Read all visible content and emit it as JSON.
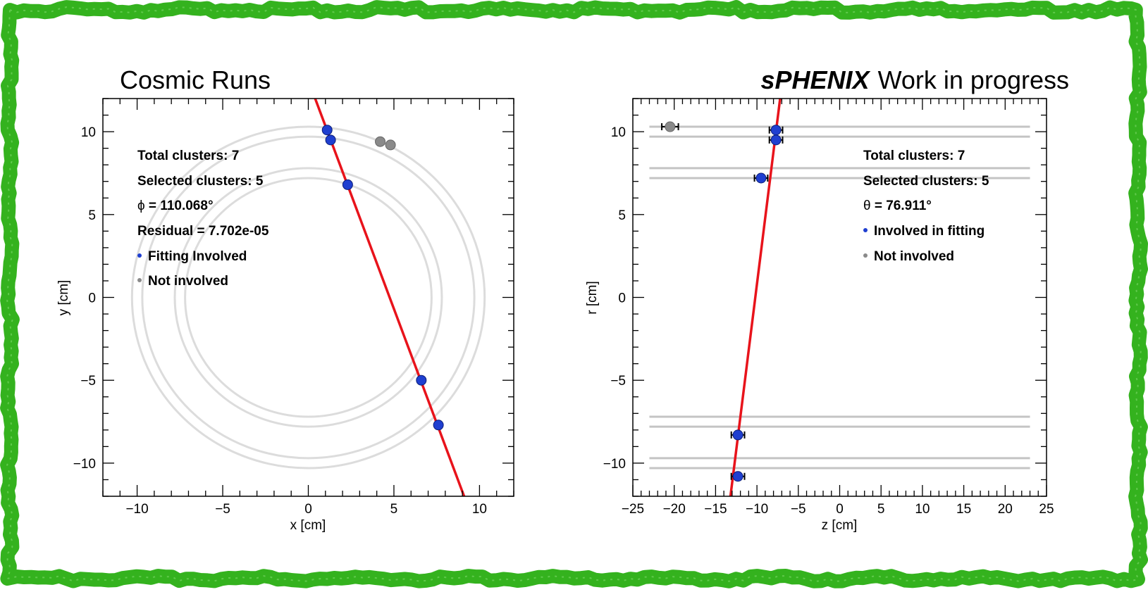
{
  "colors": {
    "frame": "#34b21e",
    "fit_line": "#e8131b",
    "involved": "#1f3fd0",
    "not_involved": "#8a8a8a",
    "layer": "#dcdcdc",
    "layer_rz": "#c4c4c4"
  },
  "header": {
    "left_title": "Cosmic Runs",
    "right_title_bold": "sPHENIX",
    "right_title_rest": "Work in progress"
  },
  "chart_data": [
    {
      "type": "scatter",
      "name": "xy-view",
      "xlabel": "x [cm]",
      "ylabel": "y [cm]",
      "xlim": [
        -12,
        12
      ],
      "ylim": [
        -12,
        12
      ],
      "xticks": [
        -10,
        -5,
        0,
        5,
        10
      ],
      "yticks": [
        -10,
        -5,
        0,
        5,
        10
      ],
      "xtick_labels": [
        "−10",
        "−5",
        "0",
        "5",
        "10"
      ],
      "ytick_labels": [
        "−10",
        "−5",
        "0",
        "5",
        "10"
      ],
      "layer_radii": [
        7.2,
        7.8,
        9.7,
        10.3
      ],
      "involved_points": [
        {
          "x": 1.1,
          "y": 10.1
        },
        {
          "x": 1.3,
          "y": 9.5
        },
        {
          "x": 2.3,
          "y": 6.8
        },
        {
          "x": 6.6,
          "y": -5.0
        },
        {
          "x": 7.6,
          "y": -7.7
        }
      ],
      "not_involved_points": [
        {
          "x": 4.2,
          "y": 9.4
        },
        {
          "x": 4.8,
          "y": 9.2
        }
      ],
      "fit_line": {
        "x1": 0.4,
        "y1": 12.0,
        "x2": 9.1,
        "y2": -12.0
      },
      "info": [
        {
          "text": "Total clusters: 7"
        },
        {
          "text": "Selected clusters: 5"
        },
        {
          "prefix": "ϕ",
          "text": " = 110.068°"
        },
        {
          "text": "Residual = 7.702e-05"
        }
      ],
      "legend": [
        {
          "marker": "involved",
          "label": "Fitting Involved"
        },
        {
          "marker": "not_involved",
          "label": "Not involved"
        }
      ]
    },
    {
      "type": "scatter",
      "name": "rz-view",
      "xlabel": "z [cm]",
      "ylabel": "r [cm]",
      "xlim": [
        -25,
        25
      ],
      "ylim": [
        -12,
        12
      ],
      "xticks": [
        -25,
        -20,
        -15,
        -10,
        -5,
        0,
        5,
        10,
        15,
        20,
        25
      ],
      "yticks": [
        -10,
        -5,
        0,
        5,
        10
      ],
      "xtick_labels": [
        "−25",
        "−20",
        "−15",
        "−10",
        "−5",
        "0",
        "5",
        "10",
        "15",
        "20",
        "25"
      ],
      "ytick_labels": [
        "−10",
        "−5",
        "0",
        "5",
        "10"
      ],
      "layer_radii": [
        10.3,
        9.7,
        7.8,
        7.2,
        -7.2,
        -7.8,
        -9.7,
        -10.3
      ],
      "layer_z_extent": [
        -23,
        23
      ],
      "involved_points": [
        {
          "x": -7.7,
          "y": 10.1,
          "xerr": 0.8
        },
        {
          "x": -7.7,
          "y": 9.5,
          "xerr": 0.8
        },
        {
          "x": -9.5,
          "y": 7.2,
          "xerr": 0.8
        },
        {
          "x": -12.3,
          "y": -8.3,
          "xerr": 0.8
        },
        {
          "x": -12.3,
          "y": -10.8,
          "xerr": 0.8
        }
      ],
      "not_involved_points": [
        {
          "x": -20.5,
          "y": 10.3,
          "xerr": 1.0
        }
      ],
      "fit_line": {
        "x1": -7.2,
        "y1": 12.0,
        "x2": -13.2,
        "y2": -12.0
      },
      "info": [
        {
          "text": "Total clusters: 7"
        },
        {
          "text": "Selected clusters: 5"
        },
        {
          "prefix": "θ",
          "text": " = 76.911°"
        }
      ],
      "legend": [
        {
          "marker": "involved",
          "label": "Involved in fitting"
        },
        {
          "marker": "not_involved",
          "label": "Not involved"
        }
      ]
    }
  ]
}
